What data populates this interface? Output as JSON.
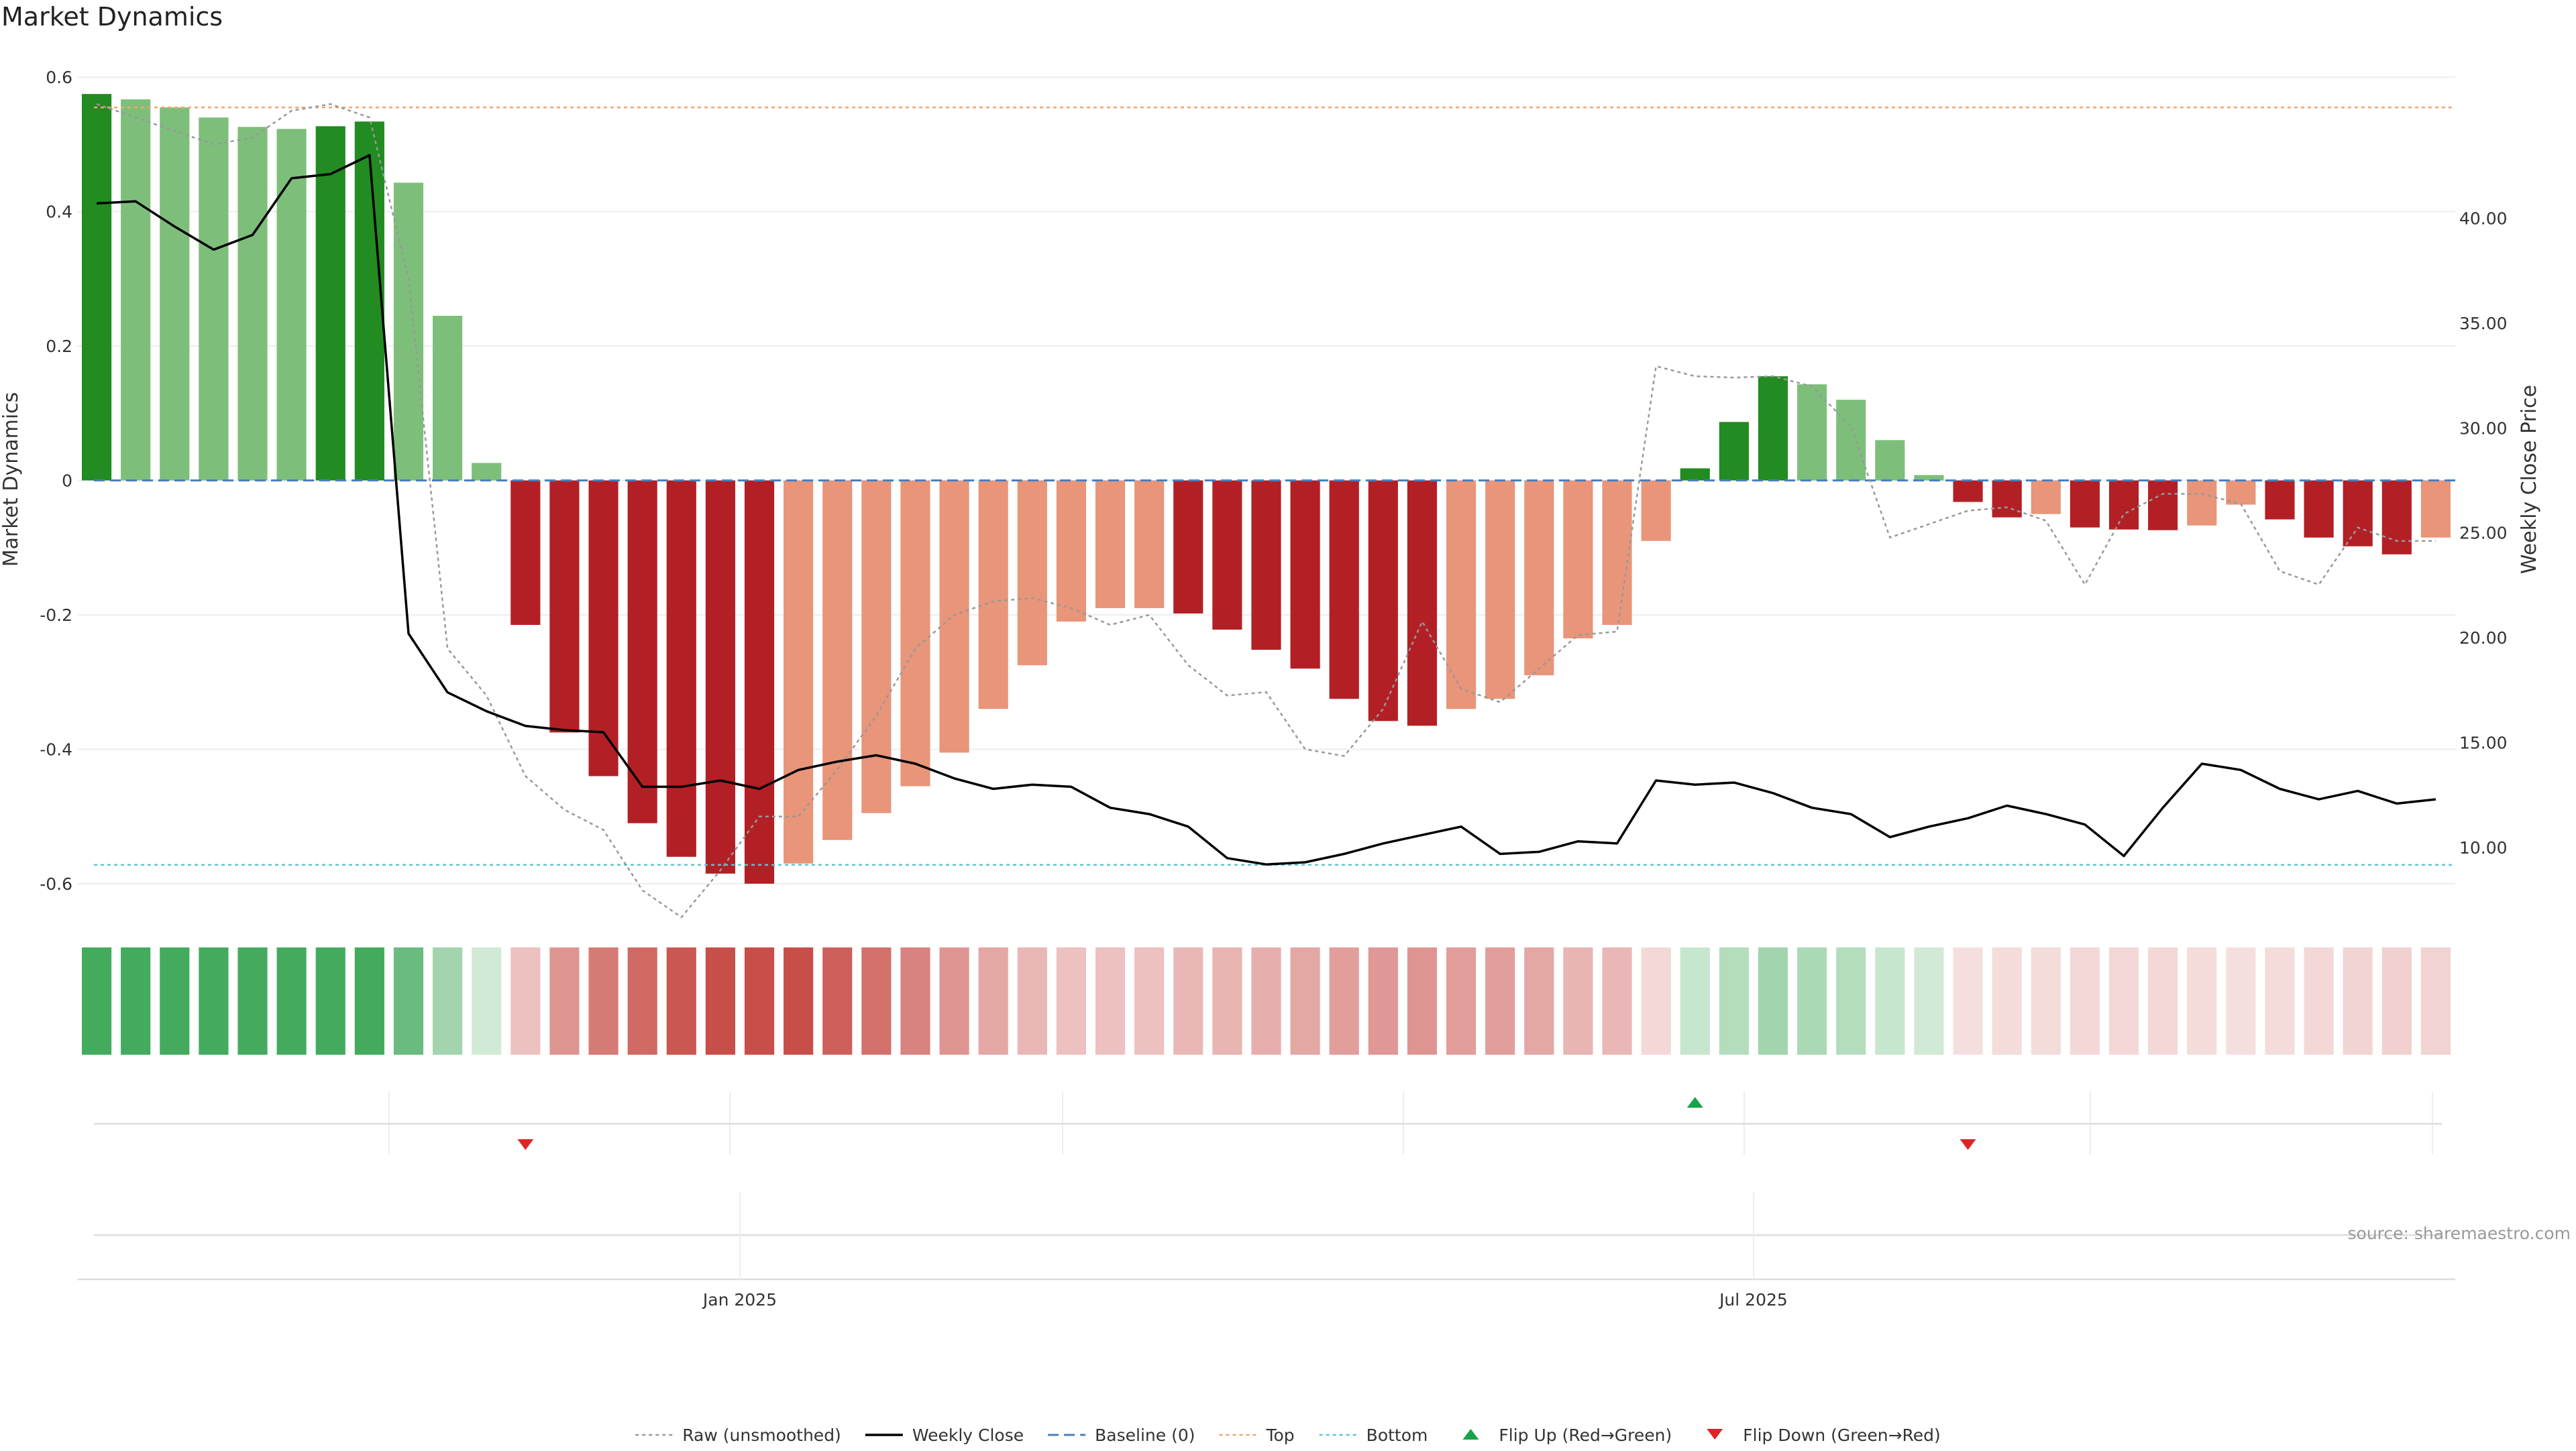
{
  "chart_data": {
    "type": "bar",
    "title": "Market Dynamics",
    "ylabel": "Market Dynamics",
    "y2label": "Weekly Close Price",
    "ylim": [
      -0.64,
      0.64
    ],
    "y2lim": [
      7.0,
      48.0
    ],
    "yticks": [
      "0.6",
      "0.4",
      "0.2",
      "0",
      "-0.2",
      "-0.4",
      "-0.6"
    ],
    "yticks_values": [
      0.6,
      0.4,
      0.2,
      0,
      -0.2,
      -0.4,
      -0.6
    ],
    "y2ticks": [
      "40.00",
      "35.00",
      "30.00",
      "25.00",
      "20.00",
      "15.00",
      "10.00"
    ],
    "y2ticks_values": [
      40,
      35,
      30,
      25,
      20,
      15,
      10
    ],
    "xticks": [
      "Jan 2025",
      "Jul 2025"
    ],
    "xticks_index": [
      16.5,
      42.5
    ],
    "top_line": 0.555,
    "bottom_line": -0.572,
    "baseline": 0,
    "categories_count": 61,
    "series": [
      {
        "name": "Market Dynamics",
        "values": [
          0.575,
          0.567,
          0.555,
          0.54,
          0.526,
          0.523,
          0.527,
          0.534,
          0.443,
          0.245,
          0.026,
          -0.215,
          -0.375,
          -0.44,
          -0.51,
          -0.56,
          -0.585,
          -0.6,
          -0.57,
          -0.535,
          -0.495,
          -0.455,
          -0.405,
          -0.34,
          -0.275,
          -0.21,
          -0.19,
          -0.19,
          -0.198,
          -0.222,
          -0.252,
          -0.28,
          -0.325,
          -0.358,
          -0.365,
          -0.34,
          -0.325,
          -0.29,
          -0.235,
          -0.215,
          -0.09,
          0.018,
          0.087,
          0.155,
          0.143,
          0.12,
          0.06,
          0.008,
          -0.032,
          -0.055,
          -0.05,
          -0.07,
          -0.073,
          -0.074,
          -0.067,
          -0.036,
          -0.058,
          -0.085,
          -0.098,
          -0.11,
          -0.085
        ],
        "states": [
          "sg",
          "wg",
          "wg",
          "wg",
          "wg",
          "wg",
          "sg",
          "sg",
          "wg",
          "wg",
          "wg",
          "sr",
          "sr",
          "sr",
          "sr",
          "sr",
          "sr",
          "sr",
          "wr",
          "wr",
          "wr",
          "wr",
          "wr",
          "wr",
          "wr",
          "wr",
          "wr",
          "wr",
          "sr",
          "sr",
          "sr",
          "sr",
          "sr",
          "sr",
          "sr",
          "wr",
          "wr",
          "wr",
          "wr",
          "wr",
          "wr",
          "sg",
          "sg",
          "sg",
          "wg",
          "wg",
          "wg",
          "wg",
          "sr",
          "sr",
          "wr",
          "sr",
          "sr",
          "sr",
          "wr",
          "wr",
          "sr",
          "sr",
          "sr",
          "sr",
          "wr"
        ]
      },
      {
        "name": "Raw (unsmoothed)",
        "values": [
          0.56,
          0.54,
          0.52,
          0.5,
          0.51,
          0.55,
          0.56,
          0.54,
          0.3,
          -0.25,
          -0.32,
          -0.44,
          -0.49,
          -0.52,
          -0.61,
          -0.65,
          -0.58,
          -0.5,
          -0.5,
          -0.43,
          -0.35,
          -0.25,
          -0.2,
          -0.18,
          -0.175,
          -0.19,
          -0.215,
          -0.2,
          -0.275,
          -0.32,
          -0.315,
          -0.4,
          -0.41,
          -0.34,
          -0.21,
          -0.31,
          -0.33,
          -0.28,
          -0.23,
          -0.225,
          0.17,
          0.155,
          0.153,
          0.155,
          0.14,
          0.08,
          -0.085,
          -0.065,
          -0.045,
          -0.04,
          -0.06,
          -0.155,
          -0.05,
          -0.02,
          -0.02,
          -0.035,
          -0.135,
          -0.155,
          -0.07,
          -0.09,
          -0.09
        ]
      },
      {
        "name": "Weekly Close",
        "values": [
          40.7,
          40.8,
          39.6,
          38.5,
          39.2,
          41.9,
          42.1,
          43.0,
          20.2,
          17.4,
          16.5,
          15.8,
          15.6,
          15.5,
          12.9,
          12.9,
          13.2,
          12.8,
          13.7,
          14.1,
          14.4,
          14.0,
          13.3,
          12.8,
          13.0,
          12.9,
          11.9,
          11.6,
          11.0,
          9.5,
          9.2,
          9.3,
          9.7,
          10.2,
          10.6,
          11.0,
          9.7,
          9.8,
          10.3,
          10.2,
          13.2,
          13.0,
          13.1,
          12.6,
          11.9,
          11.6,
          10.5,
          11.0,
          11.4,
          12.0,
          11.6,
          11.1,
          9.6,
          11.9,
          14.0,
          13.7,
          12.8,
          12.3,
          12.7,
          12.1,
          12.3
        ]
      }
    ],
    "heat_strip": [
      {
        "c": "g",
        "a": 1.0
      },
      {
        "c": "g",
        "a": 1.0
      },
      {
        "c": "g",
        "a": 1.0
      },
      {
        "c": "g",
        "a": 1.0
      },
      {
        "c": "g",
        "a": 1.0
      },
      {
        "c": "g",
        "a": 1.0
      },
      {
        "c": "g",
        "a": 1.0
      },
      {
        "c": "g",
        "a": 1.0
      },
      {
        "c": "g",
        "a": 0.8
      },
      {
        "c": "g",
        "a": 0.5
      },
      {
        "c": "g",
        "a": 0.25
      },
      {
        "c": "r",
        "a": 0.35
      },
      {
        "c": "r",
        "a": 0.6
      },
      {
        "c": "r",
        "a": 0.75
      },
      {
        "c": "r",
        "a": 0.85
      },
      {
        "c": "r",
        "a": 0.95
      },
      {
        "c": "r",
        "a": 1.0
      },
      {
        "c": "r",
        "a": 1.0
      },
      {
        "c": "r",
        "a": 1.0
      },
      {
        "c": "r",
        "a": 0.9
      },
      {
        "c": "r",
        "a": 0.8
      },
      {
        "c": "r",
        "a": 0.7
      },
      {
        "c": "r",
        "a": 0.6
      },
      {
        "c": "r",
        "a": 0.5
      },
      {
        "c": "r",
        "a": 0.4
      },
      {
        "c": "r",
        "a": 0.35
      },
      {
        "c": "r",
        "a": 0.35
      },
      {
        "c": "r",
        "a": 0.35
      },
      {
        "c": "r",
        "a": 0.4
      },
      {
        "c": "r",
        "a": 0.42
      },
      {
        "c": "r",
        "a": 0.45
      },
      {
        "c": "r",
        "a": 0.5
      },
      {
        "c": "r",
        "a": 0.55
      },
      {
        "c": "r",
        "a": 0.58
      },
      {
        "c": "r",
        "a": 0.6
      },
      {
        "c": "r",
        "a": 0.55
      },
      {
        "c": "r",
        "a": 0.55
      },
      {
        "c": "r",
        "a": 0.5
      },
      {
        "c": "r",
        "a": 0.42
      },
      {
        "c": "r",
        "a": 0.4
      },
      {
        "c": "r",
        "a": 0.22
      },
      {
        "c": "g",
        "a": 0.3
      },
      {
        "c": "g",
        "a": 0.4
      },
      {
        "c": "g",
        "a": 0.5
      },
      {
        "c": "g",
        "a": 0.45
      },
      {
        "c": "g",
        "a": 0.4
      },
      {
        "c": "g",
        "a": 0.3
      },
      {
        "c": "g",
        "a": 0.25
      },
      {
        "c": "r",
        "a": 0.18
      },
      {
        "c": "r",
        "a": 0.2
      },
      {
        "c": "r",
        "a": 0.2
      },
      {
        "c": "r",
        "a": 0.22
      },
      {
        "c": "r",
        "a": 0.22
      },
      {
        "c": "r",
        "a": 0.22
      },
      {
        "c": "r",
        "a": 0.2
      },
      {
        "c": "r",
        "a": 0.18
      },
      {
        "c": "r",
        "a": 0.2
      },
      {
        "c": "r",
        "a": 0.22
      },
      {
        "c": "r",
        "a": 0.24
      },
      {
        "c": "r",
        "a": 0.26
      },
      {
        "c": "r",
        "a": 0.25
      }
    ],
    "flip_up_index": [
      41
    ],
    "flip_down_index": [
      11,
      48
    ],
    "legend": [
      {
        "label": "Raw (unsmoothed)",
        "kind": "dotted-gray"
      },
      {
        "label": "Weekly Close",
        "kind": "solid-black"
      },
      {
        "label": "Baseline (0)",
        "kind": "dashed-blue"
      },
      {
        "label": "Top",
        "kind": "dotted-orange"
      },
      {
        "label": "Bottom",
        "kind": "dotted-cyan"
      },
      {
        "label": "Flip Up (Red→Green)",
        "kind": "triangle-up"
      },
      {
        "label": "Flip Down (Green→Red)",
        "kind": "triangle-down"
      }
    ],
    "legend_position": "bottom-center",
    "source": "source: sharemaestro.com",
    "colors": {
      "strong_green": "#228b22",
      "weak_green": "#7dbf7a",
      "strong_red": "#b22025",
      "weak_red": "#e8957a",
      "heat_green": "#3aa655",
      "heat_red": "#c5453f",
      "raw": "#999999",
      "close": "#000000",
      "baseline": "#4a7fc0",
      "top": "#f2a66b",
      "bottom": "#5bc4d6",
      "flip_up": "#16a34a",
      "flip_down": "#dc2626"
    }
  }
}
